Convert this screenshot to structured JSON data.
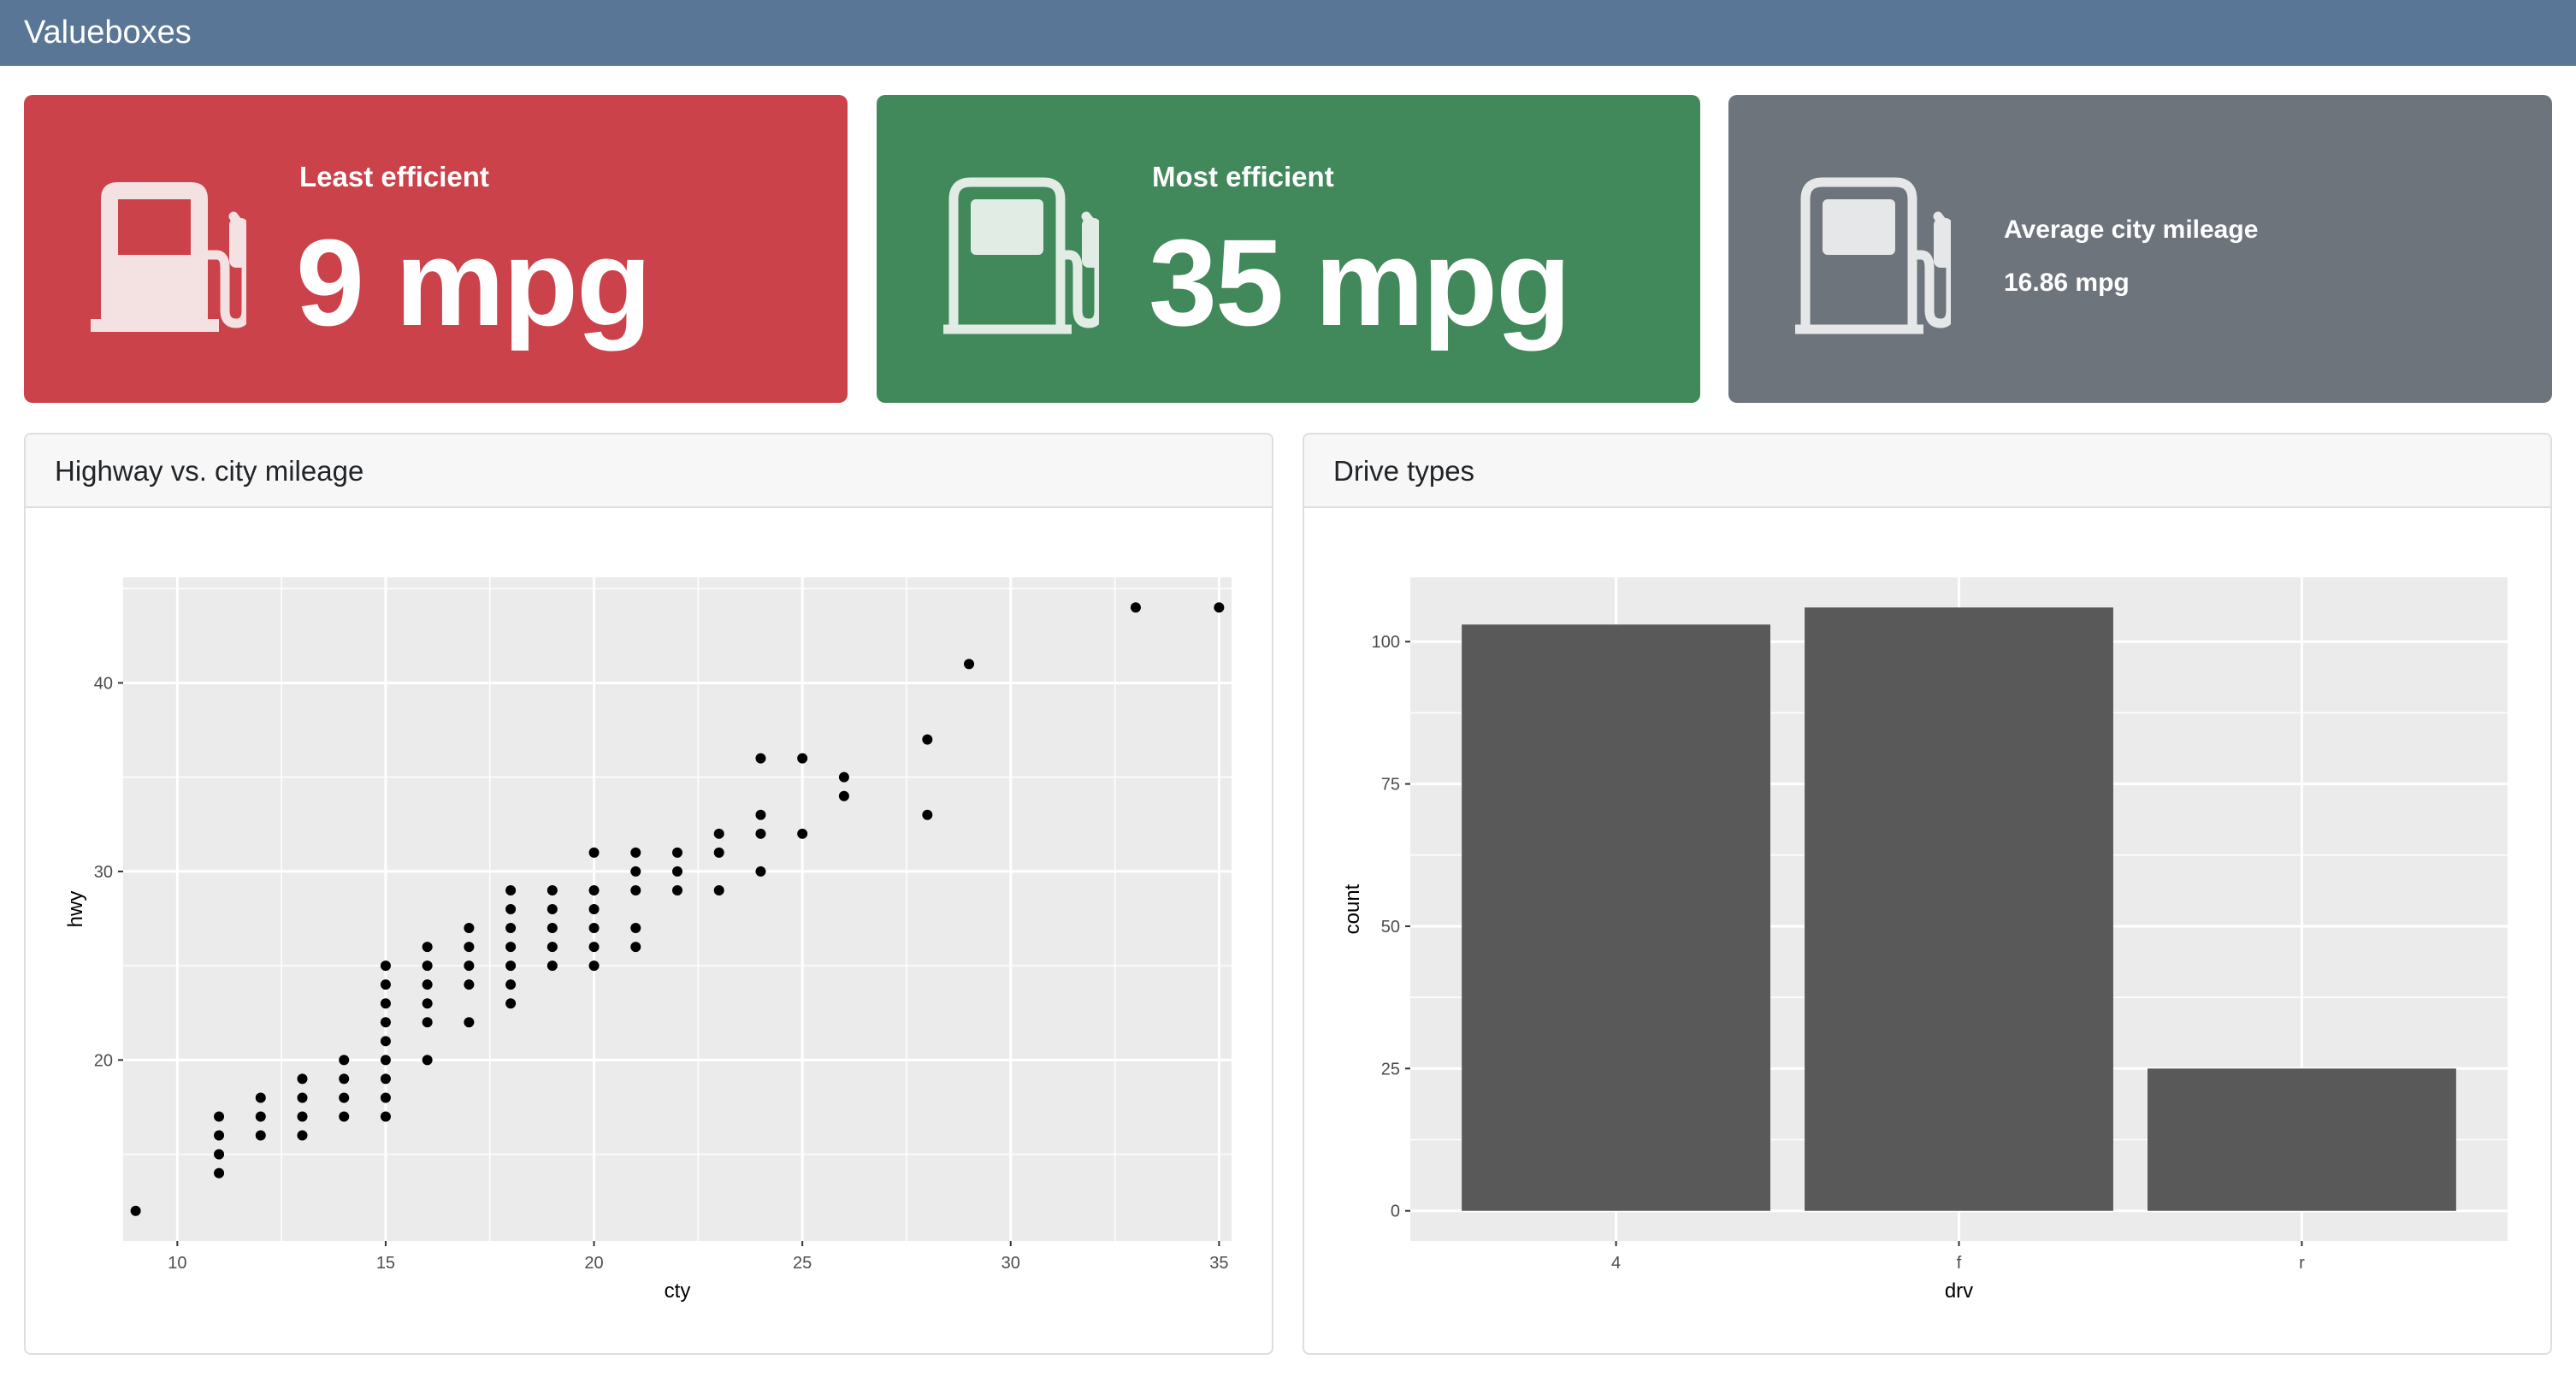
{
  "navbar": {
    "title": "Valueboxes"
  },
  "value_boxes": [
    {
      "title": "Least efficient",
      "value": "9 mpg",
      "icon": "fuel-pump-fill-icon",
      "color": "#cc424b"
    },
    {
      "title": "Most efficient",
      "value": "35 mpg",
      "icon": "fuel-pump-icon",
      "color": "#41885a"
    },
    {
      "title": "Average city mileage",
      "value": "16.86 mpg",
      "icon": "fuel-pump-icon",
      "color": "#6e747c"
    }
  ],
  "cards": [
    {
      "title": "Highway vs. city mileage"
    },
    {
      "title": "Drive types"
    }
  ],
  "chart_data": [
    {
      "type": "scatter",
      "xlabel": "cty",
      "ylabel": "hwy",
      "xlim": [
        8.7,
        35.3
      ],
      "ylim": [
        10.4,
        45.6
      ],
      "x_ticks": [
        10,
        15,
        20,
        25,
        30,
        35
      ],
      "y_ticks": [
        20,
        30,
        40
      ],
      "grid": true,
      "points": [
        [
          9,
          12
        ],
        [
          11,
          14
        ],
        [
          11,
          15
        ],
        [
          11,
          16
        ],
        [
          11,
          17
        ],
        [
          12,
          16
        ],
        [
          12,
          17
        ],
        [
          12,
          18
        ],
        [
          13,
          16
        ],
        [
          13,
          17
        ],
        [
          13,
          18
        ],
        [
          13,
          19
        ],
        [
          14,
          17
        ],
        [
          14,
          18
        ],
        [
          14,
          19
        ],
        [
          14,
          20
        ],
        [
          15,
          17
        ],
        [
          15,
          18
        ],
        [
          15,
          19
        ],
        [
          15,
          20
        ],
        [
          15,
          21
        ],
        [
          15,
          22
        ],
        [
          15,
          23
        ],
        [
          15,
          24
        ],
        [
          15,
          25
        ],
        [
          16,
          20
        ],
        [
          16,
          22
        ],
        [
          16,
          23
        ],
        [
          16,
          24
        ],
        [
          16,
          25
        ],
        [
          16,
          26
        ],
        [
          17,
          22
        ],
        [
          17,
          24
        ],
        [
          17,
          25
        ],
        [
          17,
          26
        ],
        [
          17,
          27
        ],
        [
          18,
          23
        ],
        [
          18,
          24
        ],
        [
          18,
          25
        ],
        [
          18,
          26
        ],
        [
          18,
          27
        ],
        [
          18,
          28
        ],
        [
          18,
          29
        ],
        [
          19,
          25
        ],
        [
          19,
          26
        ],
        [
          19,
          27
        ],
        [
          19,
          28
        ],
        [
          19,
          29
        ],
        [
          20,
          25
        ],
        [
          20,
          26
        ],
        [
          20,
          27
        ],
        [
          20,
          28
        ],
        [
          20,
          29
        ],
        [
          20,
          31
        ],
        [
          21,
          26
        ],
        [
          21,
          27
        ],
        [
          21,
          29
        ],
        [
          21,
          30
        ],
        [
          21,
          31
        ],
        [
          22,
          29
        ],
        [
          22,
          30
        ],
        [
          22,
          31
        ],
        [
          23,
          29
        ],
        [
          23,
          31
        ],
        [
          23,
          32
        ],
        [
          24,
          30
        ],
        [
          24,
          32
        ],
        [
          24,
          33
        ],
        [
          24,
          36
        ],
        [
          25,
          32
        ],
        [
          25,
          36
        ],
        [
          26,
          34
        ],
        [
          26,
          35
        ],
        [
          28,
          33
        ],
        [
          28,
          37
        ],
        [
          29,
          41
        ],
        [
          33,
          44
        ],
        [
          35,
          44
        ]
      ]
    },
    {
      "type": "bar",
      "xlabel": "drv",
      "ylabel": "count",
      "categories": [
        "4",
        "f",
        "r"
      ],
      "values": [
        103,
        106,
        25
      ],
      "ylim": [
        -5.3,
        111.3
      ],
      "y_ticks": [
        0,
        25,
        50,
        75,
        100
      ],
      "grid": true,
      "bar_color": "#595959"
    }
  ]
}
